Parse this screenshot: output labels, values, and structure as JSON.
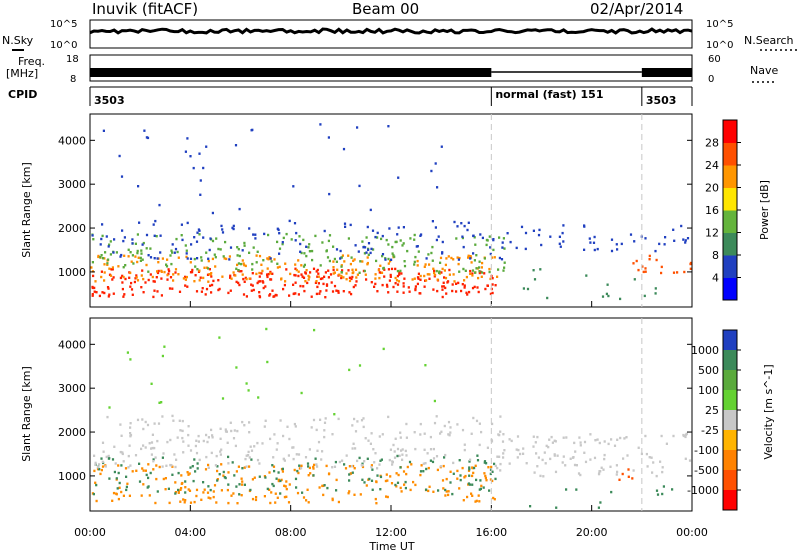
{
  "header": {
    "station": "Inuvik (fitACF)",
    "beam": "Beam 00",
    "date": "02/Apr/2014"
  },
  "top_panels": {
    "nsky_label": "N.Sky",
    "nsky_ticks": [
      "10^5",
      "10^0"
    ],
    "nsearch_label": "N.Search",
    "nsearch_ticks": [
      "10^5",
      "10^0"
    ],
    "freq_label": "Freq.",
    "freq_unit": "[MHz]",
    "freq_ticks": [
      "18",
      "8"
    ],
    "nave_label": "Nave",
    "nave_ticks": [
      "60",
      "0"
    ],
    "cpid_label": "CPID",
    "cpid_segments": [
      {
        "start_h": 0,
        "end_h": 16,
        "label": "3503"
      },
      {
        "start_h": 16,
        "end_h": 22,
        "label": "normal (fast) 151"
      },
      {
        "start_h": 22,
        "end_h": 24,
        "label": "3503"
      }
    ]
  },
  "chart_data": [
    {
      "type": "heatmap",
      "name": "power-panel",
      "ylabel": "Slant Range [km]",
      "yticks": [
        "1000",
        "2000",
        "3000",
        "4000"
      ],
      "ylim": [
        200,
        4600
      ],
      "xlim": [
        0,
        24
      ],
      "colorbar_label": "Power [dB]",
      "colorbar_ticks": [
        "4",
        "8",
        "12",
        "16",
        "20",
        "24",
        "28"
      ],
      "colorbar_colors": [
        "#0000ff",
        "#2040c0",
        "#3c8a5a",
        "#64b43c",
        "#ffe600",
        "#ff9600",
        "#ff5000",
        "#ff0000"
      ],
      "scatter_bands": [
        {
          "h0": 0.0,
          "h1": 16.2,
          "r0": 450,
          "r1": 1100,
          "color": "#ff2000",
          "density": 0.95
        },
        {
          "h0": 0.0,
          "h1": 16.2,
          "r0": 800,
          "r1": 1400,
          "color": "#ff8c00",
          "density": 0.7
        },
        {
          "h0": 0.0,
          "h1": 16.5,
          "r0": 1000,
          "r1": 1900,
          "color": "#5aaa3c",
          "density": 0.45
        },
        {
          "h0": 0.0,
          "h1": 16.5,
          "r0": 1300,
          "r1": 2200,
          "color": "#2040c0",
          "density": 0.3
        },
        {
          "h0": 0.5,
          "h1": 14.0,
          "r0": 2200,
          "r1": 4400,
          "color": "#2040c0",
          "density": 0.04
        },
        {
          "h0": 16.0,
          "h1": 24.0,
          "r0": 1500,
          "r1": 2100,
          "color": "#2040c0",
          "density": 0.35
        },
        {
          "h0": 21.5,
          "h1": 24.0,
          "r0": 1000,
          "r1": 1400,
          "color": "#ff5000",
          "density": 0.6
        },
        {
          "h0": 17.0,
          "h1": 23.5,
          "r0": 400,
          "r1": 1100,
          "color": "#3c8a5a",
          "density": 0.12
        }
      ]
    },
    {
      "type": "heatmap",
      "name": "velocity-panel",
      "xlabel": "Time UT",
      "ylabel": "Slant Range [km]",
      "xticks": [
        "00:00",
        "04:00",
        "08:00",
        "12:00",
        "16:00",
        "20:00",
        "00:00"
      ],
      "yticks": [
        "1000",
        "2000",
        "3000",
        "4000"
      ],
      "ylim": [
        200,
        4600
      ],
      "xlim": [
        0,
        24
      ],
      "colorbar_label": "Velocity [m s^-1]",
      "colorbar_ticks": [
        "1000",
        "500",
        "100",
        "25",
        "-25",
        "-100",
        "-500",
        "-1000"
      ],
      "colorbar_colors": [
        "#2040c0",
        "#3c8a5a",
        "#5aaa3c",
        "#64d232",
        "#c8c8c8",
        "#ffb400",
        "#ff8200",
        "#ff5000",
        "#ff0000"
      ],
      "scatter_bands": [
        {
          "h0": 0.0,
          "h1": 16.2,
          "r0": 400,
          "r1": 1300,
          "color": "#ff8c00",
          "density": 0.55
        },
        {
          "h0": 0.0,
          "h1": 16.2,
          "r0": 600,
          "r1": 1500,
          "color": "#3c8a5a",
          "density": 0.35
        },
        {
          "h0": 0.0,
          "h1": 16.5,
          "r0": 1200,
          "r1": 2400,
          "color": "#c8c8c8",
          "density": 0.45
        },
        {
          "h0": 16.0,
          "h1": 24.0,
          "r0": 1000,
          "r1": 2000,
          "color": "#c8c8c8",
          "density": 0.5
        },
        {
          "h0": 0.5,
          "h1": 14.0,
          "r0": 2400,
          "r1": 4400,
          "color": "#64d232",
          "density": 0.03
        },
        {
          "h0": 21.0,
          "h1": 22.0,
          "r0": 900,
          "r1": 1200,
          "color": "#ff5000",
          "density": 0.6
        },
        {
          "h0": 17.0,
          "h1": 23.5,
          "r0": 300,
          "r1": 900,
          "color": "#3c8a5a",
          "density": 0.1
        }
      ]
    }
  ],
  "colors": {
    "line": "#000000",
    "gridline": "#c8c8c8"
  }
}
